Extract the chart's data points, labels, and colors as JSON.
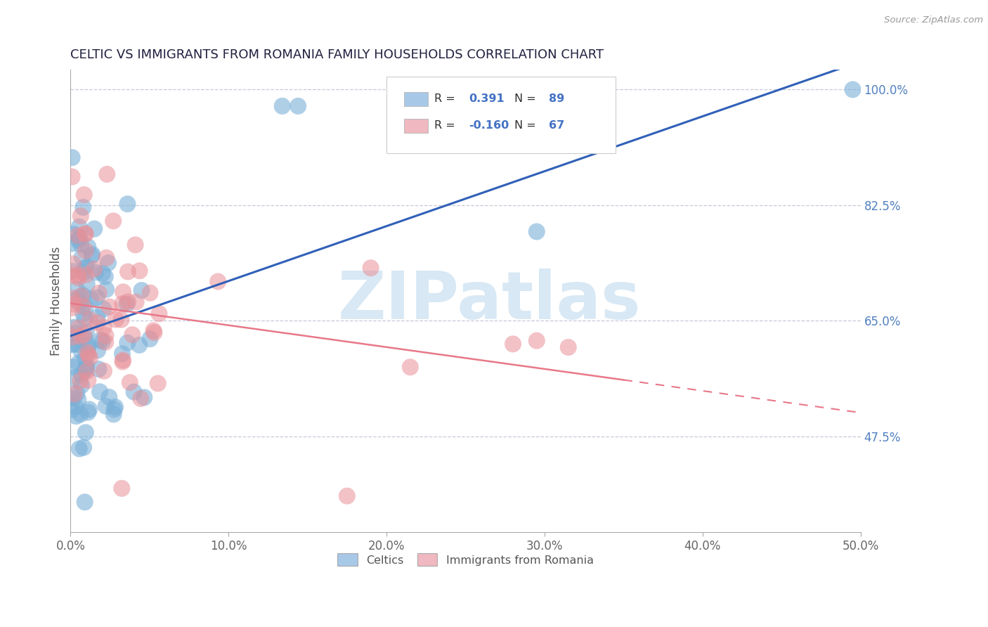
{
  "title": "CELTIC VS IMMIGRANTS FROM ROMANIA FAMILY HOUSEHOLDS CORRELATION CHART",
  "source_text": "Source: ZipAtlas.com",
  "ylabel": "Family Households",
  "xlim": [
    0.0,
    0.5
  ],
  "ylim": [
    0.33,
    1.03
  ],
  "xtick_vals": [
    0.0,
    0.1,
    0.2,
    0.3,
    0.4,
    0.5
  ],
  "xtick_labels": [
    "0.0%",
    "10.0%",
    "20.0%",
    "30.0%",
    "40.0%",
    "50.0%"
  ],
  "yticks_right": [
    0.475,
    0.65,
    0.825,
    1.0
  ],
  "ytick_labels_right": [
    "47.5%",
    "65.0%",
    "82.5%",
    "100.0%"
  ],
  "bottom_legend": [
    "Celtics",
    "Immigrants from Romania"
  ],
  "bottom_legend_colors": [
    "#a8c8e8",
    "#f0b8c0"
  ],
  "celtics_color": "#7ab0d8",
  "romania_color": "#e89098",
  "celtics_line_color": "#3060b8",
  "romania_line_color": "#e87888",
  "watermark": "ZIPatlas",
  "watermark_color": "#d8e8f4",
  "title_color": "#202040",
  "axis_label_color": "#555555",
  "right_tick_color": "#5080c0",
  "grid_color": "#c8c8d8",
  "background_color": "#ffffff",
  "legend_box_color_celtics": "#a8c8e8",
  "legend_box_color_romania": "#f0b8c0",
  "legend_text_color": "#303030",
  "legend_val_color": "#4472c4"
}
